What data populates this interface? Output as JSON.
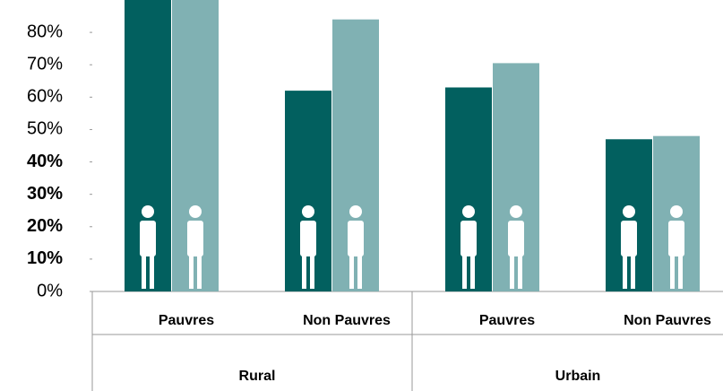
{
  "chart_data": {
    "type": "bar",
    "categories": [
      "Pauvres",
      "Non Pauvres",
      "Pauvres",
      "Non Pauvres"
    ],
    "groups": [
      "Rural",
      "Urbain"
    ],
    "series": [
      {
        "color": "#02605f",
        "values": [
          92,
          62,
          63,
          47
        ]
      },
      {
        "color": "#80b1b3",
        "values": [
          91,
          84,
          70.5,
          48
        ]
      }
    ],
    "ylim": [
      0,
      90
    ],
    "yticks": [
      {
        "value": 0,
        "label": "0%"
      },
      {
        "value": 10,
        "label": "10%"
      },
      {
        "value": 20,
        "label": "20%"
      },
      {
        "value": 30,
        "label": "30%"
      },
      {
        "value": 40,
        "label": "40%"
      },
      {
        "value": 50,
        "label": "50%"
      },
      {
        "value": 60,
        "label": "60%"
      },
      {
        "value": 70,
        "label": "70%"
      },
      {
        "value": 80,
        "label": "80%"
      }
    ],
    "grid": false
  }
}
